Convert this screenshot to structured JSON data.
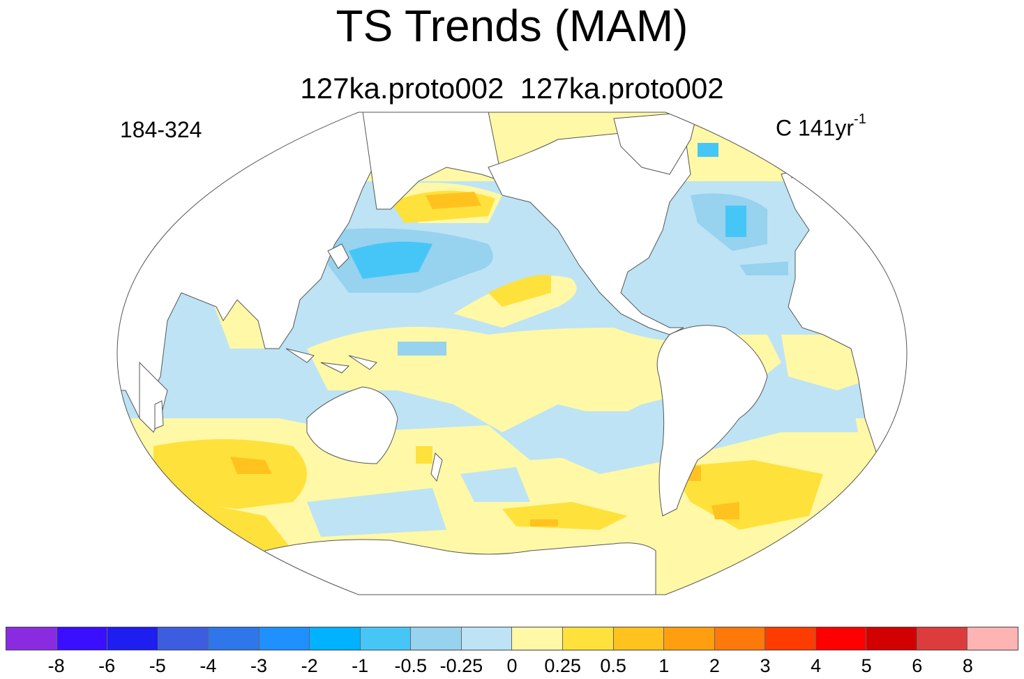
{
  "title": "TS Trends (MAM)",
  "subtitle": "127ka.proto002  127ka.proto002",
  "years_label": "184-324",
  "units_label": {
    "prefix": "C 141yr",
    "exponent": "-1"
  },
  "colors": {
    "land": "#ffffff",
    "coast": "#555555",
    "outline": "#555555"
  },
  "colorbar": {
    "colors": [
      "#8a2be2",
      "#3a0fff",
      "#1e1ef0",
      "#3c5de0",
      "#2e76ea",
      "#1e90ff",
      "#00b2ff",
      "#46c6f7",
      "#97d2ef",
      "#bde3f5",
      "#fff8a6",
      "#ffe13c",
      "#ffc21e",
      "#ff9f0f",
      "#ff780a",
      "#ff3c00",
      "#ff0000",
      "#d20000",
      "#dc3c3c",
      "#ffb4b4"
    ],
    "labels": [
      "-8",
      "-6",
      "-5",
      "-4",
      "-3",
      "-2",
      "-1",
      "-0.5",
      "-0.25",
      "0",
      "0.25",
      "0.5",
      "1",
      "2",
      "3",
      "4",
      "5",
      "6",
      "8"
    ]
  }
}
